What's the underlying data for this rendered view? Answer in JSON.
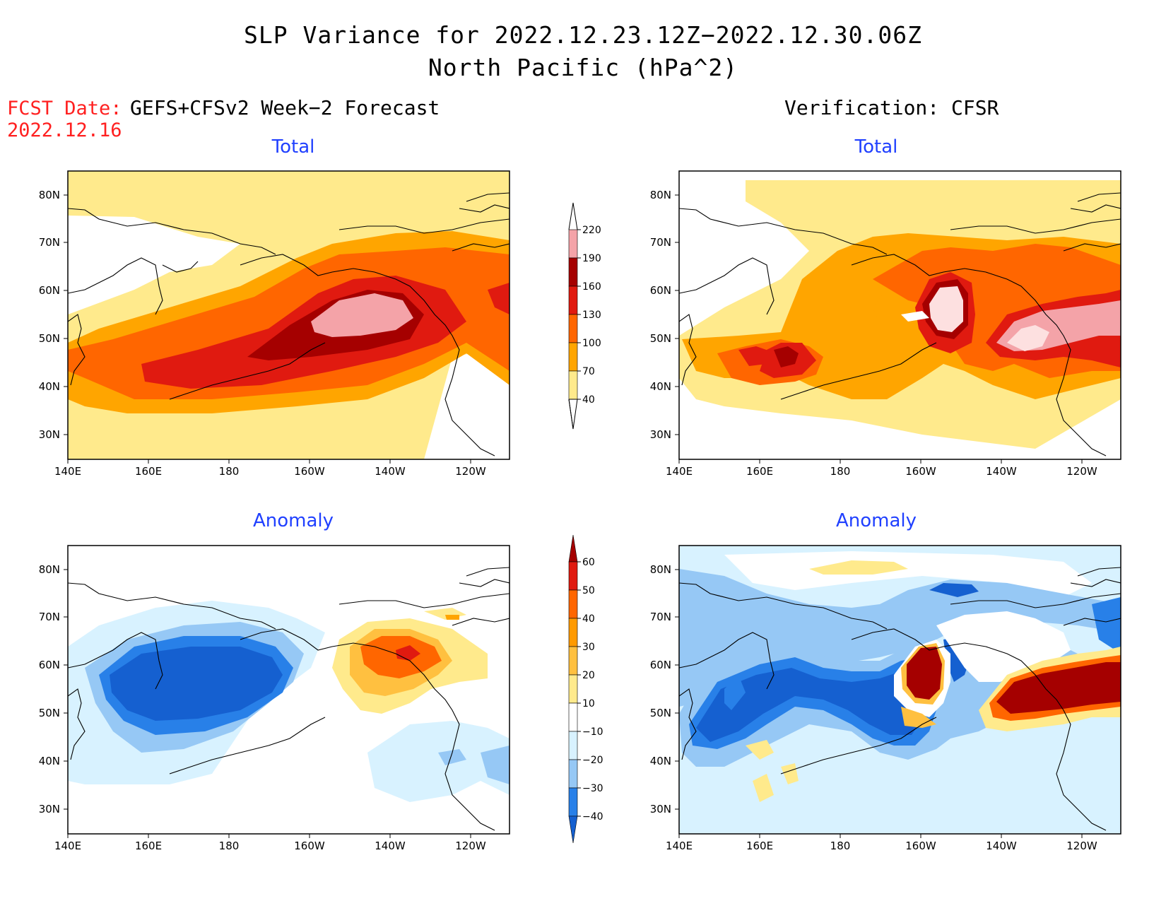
{
  "header": {
    "title_line1": "SLP Variance for 2022.12.23.12Z−2022.12.30.06Z",
    "title_line2": "North Pacific (hPa^2)",
    "fcst_label": "FCST Date:",
    "fcst_date": "2022.12.16",
    "left_heading": "GEFS+CFSv2 Week−2 Forecast",
    "right_heading": "Verification: CFSR"
  },
  "panels": {
    "top_left_title": "Total",
    "top_right_title": "Total",
    "bottom_left_title": "Anomaly",
    "bottom_right_title": "Anomaly"
  },
  "axes": {
    "lat_labels": [
      "80N",
      "70N",
      "60N",
      "50N",
      "40N",
      "30N"
    ],
    "lon_labels": [
      "140E",
      "160E",
      "180",
      "160W",
      "140W",
      "120W"
    ]
  },
  "colorbar_total": {
    "levels": [
      "40",
      "70",
      "100",
      "130",
      "160",
      "190",
      "220"
    ],
    "colors": [
      "#ffea8c",
      "#ffa500",
      "#ff6600",
      "#e01a10",
      "#a50000",
      "#f4a3a8",
      "#fde0e0"
    ]
  },
  "colorbar_anomaly": {
    "levels": [
      "−40",
      "−30",
      "−20",
      "−10",
      "10",
      "20",
      "30",
      "40",
      "50",
      "60"
    ],
    "colors": [
      "#1560d0",
      "#2880e8",
      "#96c8f5",
      "#d8f2ff",
      "#ffffff",
      "#ffea8c",
      "#ffc040",
      "#ff9a00",
      "#ff6600",
      "#e01a10",
      "#a50000"
    ]
  }
}
